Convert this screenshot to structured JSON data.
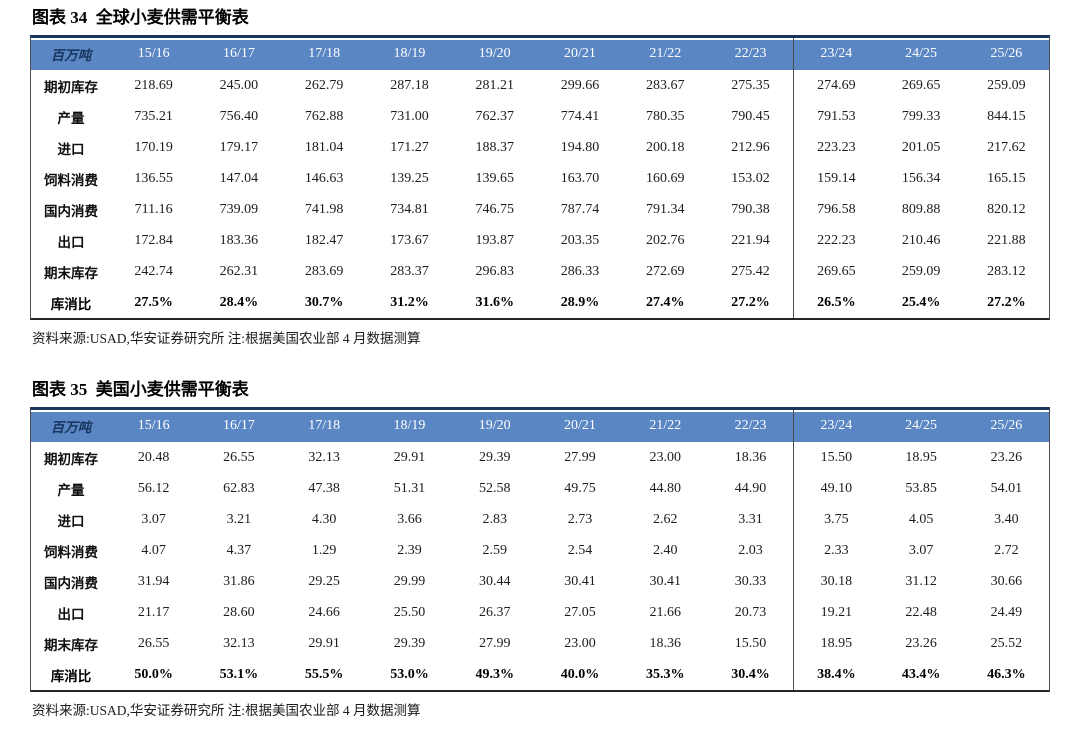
{
  "colors": {
    "header_blue": "#5B86C4",
    "header_year_text": "#FFFFFF",
    "unit_label_text": "#17365D",
    "top_rule": "#17365D",
    "body_text": "#1D1D1D"
  },
  "figures": [
    {
      "title": "图表 34  全球小麦供需平衡表",
      "unit_label": "百万吨",
      "columns": [
        "15/16",
        "16/17",
        "17/18",
        "18/19",
        "19/20",
        "20/21",
        "21/22",
        "22/23",
        "23/24",
        "24/25",
        "25/26"
      ],
      "forecast_start_index": 8,
      "rows": [
        {
          "label": "期初库存",
          "emphasis": false,
          "values": [
            "218.69",
            "245.00",
            "262.79",
            "287.18",
            "281.21",
            "299.66",
            "283.67",
            "275.35",
            "274.69",
            "269.65",
            "259.09"
          ]
        },
        {
          "label": "产量",
          "emphasis": false,
          "values": [
            "735.21",
            "756.40",
            "762.88",
            "731.00",
            "762.37",
            "774.41",
            "780.35",
            "790.45",
            "791.53",
            "799.33",
            "844.15"
          ]
        },
        {
          "label": "进口",
          "emphasis": false,
          "values": [
            "170.19",
            "179.17",
            "181.04",
            "171.27",
            "188.37",
            "194.80",
            "200.18",
            "212.96",
            "223.23",
            "201.05",
            "217.62"
          ]
        },
        {
          "label": "饲料消费",
          "emphasis": false,
          "values": [
            "136.55",
            "147.04",
            "146.63",
            "139.25",
            "139.65",
            "163.70",
            "160.69",
            "153.02",
            "159.14",
            "156.34",
            "165.15"
          ]
        },
        {
          "label": "国内消费",
          "emphasis": false,
          "values": [
            "711.16",
            "739.09",
            "741.98",
            "734.81",
            "746.75",
            "787.74",
            "791.34",
            "790.38",
            "796.58",
            "809.88",
            "820.12"
          ]
        },
        {
          "label": "出口",
          "emphasis": false,
          "values": [
            "172.84",
            "183.36",
            "182.47",
            "173.67",
            "193.87",
            "203.35",
            "202.76",
            "221.94",
            "222.23",
            "210.46",
            "221.88"
          ]
        },
        {
          "label": "期末库存",
          "emphasis": false,
          "values": [
            "242.74",
            "262.31",
            "283.69",
            "283.37",
            "296.83",
            "286.33",
            "272.69",
            "275.42",
            "269.65",
            "259.09",
            "283.12"
          ]
        },
        {
          "label": "库消比",
          "emphasis": true,
          "values": [
            "27.5%",
            "28.4%",
            "30.7%",
            "31.2%",
            "31.6%",
            "28.9%",
            "27.4%",
            "27.2%",
            "26.5%",
            "25.4%",
            "27.2%"
          ]
        }
      ],
      "source_note": "资料来源:USAD,华安证券研究所 注:根据美国农业部 4 月数据测算"
    },
    {
      "title": "图表 35  美国小麦供需平衡表",
      "unit_label": "百万吨",
      "columns": [
        "15/16",
        "16/17",
        "17/18",
        "18/19",
        "19/20",
        "20/21",
        "21/22",
        "22/23",
        "23/24",
        "24/25",
        "25/26"
      ],
      "forecast_start_index": 8,
      "rows": [
        {
          "label": "期初库存",
          "emphasis": false,
          "values": [
            "20.48",
            "26.55",
            "32.13",
            "29.91",
            "29.39",
            "27.99",
            "23.00",
            "18.36",
            "15.50",
            "18.95",
            "23.26"
          ]
        },
        {
          "label": "产量",
          "emphasis": false,
          "values": [
            "56.12",
            "62.83",
            "47.38",
            "51.31",
            "52.58",
            "49.75",
            "44.80",
            "44.90",
            "49.10",
            "53.85",
            "54.01"
          ]
        },
        {
          "label": "进口",
          "emphasis": false,
          "values": [
            "3.07",
            "3.21",
            "4.30",
            "3.66",
            "2.83",
            "2.73",
            "2.62",
            "3.31",
            "3.75",
            "4.05",
            "3.40"
          ]
        },
        {
          "label": "饲料消费",
          "emphasis": false,
          "values": [
            "4.07",
            "4.37",
            "1.29",
            "2.39",
            "2.59",
            "2.54",
            "2.40",
            "2.03",
            "2.33",
            "3.07",
            "2.72"
          ]
        },
        {
          "label": "国内消费",
          "emphasis": false,
          "values": [
            "31.94",
            "31.86",
            "29.25",
            "29.99",
            "30.44",
            "30.41",
            "30.41",
            "30.33",
            "30.18",
            "31.12",
            "30.66"
          ]
        },
        {
          "label": "出口",
          "emphasis": false,
          "values": [
            "21.17",
            "28.60",
            "24.66",
            "25.50",
            "26.37",
            "27.05",
            "21.66",
            "20.73",
            "19.21",
            "22.48",
            "24.49"
          ]
        },
        {
          "label": "期末库存",
          "emphasis": false,
          "values": [
            "26.55",
            "32.13",
            "29.91",
            "29.39",
            "27.99",
            "23.00",
            "18.36",
            "15.50",
            "18.95",
            "23.26",
            "25.52"
          ]
        },
        {
          "label": "库消比",
          "emphasis": true,
          "values": [
            "50.0%",
            "53.1%",
            "55.5%",
            "53.0%",
            "49.3%",
            "40.0%",
            "35.3%",
            "30.4%",
            "38.4%",
            "43.4%",
            "46.3%"
          ]
        }
      ],
      "source_note": "资料来源:USAD,华安证券研究所 注:根据美国农业部 4 月数据测算"
    }
  ],
  "chart_data": [
    {
      "type": "table",
      "title": "图表 34 全球小麦供需平衡表 (百万吨)",
      "categories": [
        "15/16",
        "16/17",
        "17/18",
        "18/19",
        "19/20",
        "20/21",
        "21/22",
        "22/23",
        "23/24",
        "24/25",
        "25/26"
      ],
      "series": [
        {
          "name": "期初库存",
          "values": [
            218.69,
            245.0,
            262.79,
            287.18,
            281.21,
            299.66,
            283.67,
            275.35,
            274.69,
            269.65,
            259.09
          ]
        },
        {
          "name": "产量",
          "values": [
            735.21,
            756.4,
            762.88,
            731.0,
            762.37,
            774.41,
            780.35,
            790.45,
            791.53,
            799.33,
            844.15
          ]
        },
        {
          "name": "进口",
          "values": [
            170.19,
            179.17,
            181.04,
            171.27,
            188.37,
            194.8,
            200.18,
            212.96,
            223.23,
            201.05,
            217.62
          ]
        },
        {
          "name": "饲料消费",
          "values": [
            136.55,
            147.04,
            146.63,
            139.25,
            139.65,
            163.7,
            160.69,
            153.02,
            159.14,
            156.34,
            165.15
          ]
        },
        {
          "name": "国内消费",
          "values": [
            711.16,
            739.09,
            741.98,
            734.81,
            746.75,
            787.74,
            791.34,
            790.38,
            796.58,
            809.88,
            820.12
          ]
        },
        {
          "name": "出口",
          "values": [
            172.84,
            183.36,
            182.47,
            173.67,
            193.87,
            203.35,
            202.76,
            221.94,
            222.23,
            210.46,
            221.88
          ]
        },
        {
          "name": "期末库存",
          "values": [
            242.74,
            262.31,
            283.69,
            283.37,
            296.83,
            286.33,
            272.69,
            275.42,
            269.65,
            259.09,
            283.12
          ]
        },
        {
          "name": "库消比(%)",
          "values": [
            27.5,
            28.4,
            30.7,
            31.2,
            31.6,
            28.9,
            27.4,
            27.2,
            26.5,
            25.4,
            27.2
          ]
        }
      ]
    },
    {
      "type": "table",
      "title": "图表 35 美国小麦供需平衡表 (百万吨)",
      "categories": [
        "15/16",
        "16/17",
        "17/18",
        "18/19",
        "19/20",
        "20/21",
        "21/22",
        "22/23",
        "23/24",
        "24/25",
        "25/26"
      ],
      "series": [
        {
          "name": "期初库存",
          "values": [
            20.48,
            26.55,
            32.13,
            29.91,
            29.39,
            27.99,
            23.0,
            18.36,
            15.5,
            18.95,
            23.26
          ]
        },
        {
          "name": "产量",
          "values": [
            56.12,
            62.83,
            47.38,
            51.31,
            52.58,
            49.75,
            44.8,
            44.9,
            49.1,
            53.85,
            54.01
          ]
        },
        {
          "name": "进口",
          "values": [
            3.07,
            3.21,
            4.3,
            3.66,
            2.83,
            2.73,
            2.62,
            3.31,
            3.75,
            4.05,
            3.4
          ]
        },
        {
          "name": "饲料消费",
          "values": [
            4.07,
            4.37,
            1.29,
            2.39,
            2.59,
            2.54,
            2.4,
            2.03,
            2.33,
            3.07,
            2.72
          ]
        },
        {
          "name": "国内消费",
          "values": [
            31.94,
            31.86,
            29.25,
            29.99,
            30.44,
            30.41,
            30.41,
            30.33,
            30.18,
            31.12,
            30.66
          ]
        },
        {
          "name": "出口",
          "values": [
            21.17,
            28.6,
            24.66,
            25.5,
            26.37,
            27.05,
            21.66,
            20.73,
            19.21,
            22.48,
            24.49
          ]
        },
        {
          "name": "期末库存",
          "values": [
            26.55,
            32.13,
            29.91,
            29.39,
            27.99,
            23.0,
            18.36,
            15.5,
            18.95,
            23.26,
            25.52
          ]
        },
        {
          "name": "库消比(%)",
          "values": [
            50.0,
            53.1,
            55.5,
            53.0,
            49.3,
            40.0,
            35.3,
            30.4,
            38.4,
            43.4,
            46.3
          ]
        }
      ]
    }
  ]
}
